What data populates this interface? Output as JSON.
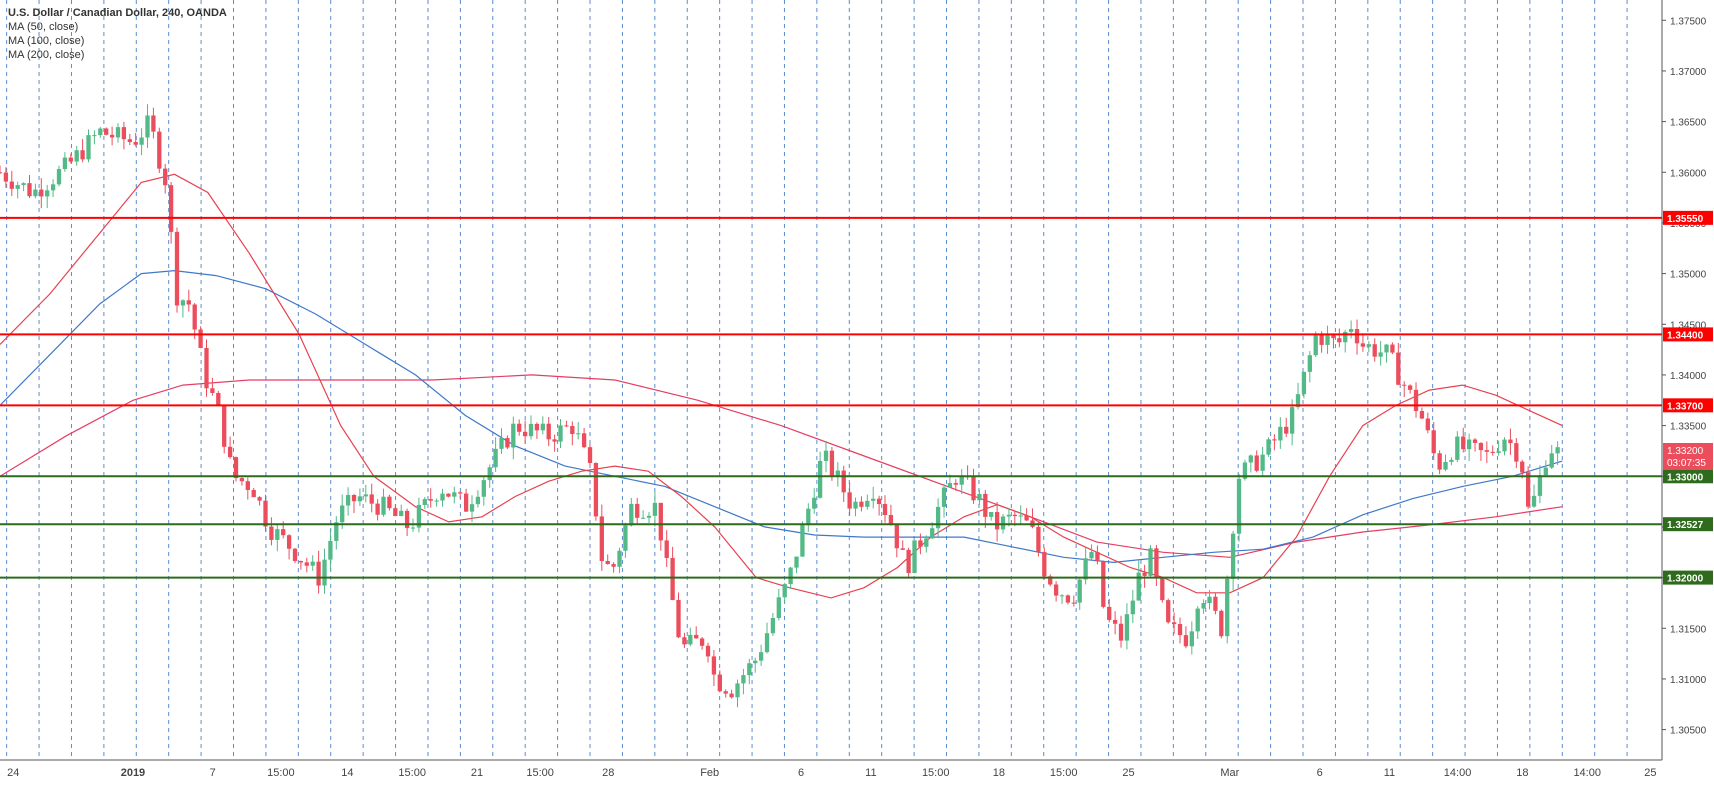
{
  "legend": {
    "title": "U.S. Dollar / Canadian Dollar, 240, OANDA",
    "ma50": "MA (50, close)",
    "ma100": "MA (100, close)",
    "ma200": "MA (200, close)"
  },
  "colors": {
    "up": "#53b987",
    "down": "#eb4d5c",
    "ma50": "#e8414e",
    "ma100": "#3f78c9",
    "ma200": "#e53e63",
    "resistance": "#ff0000",
    "support": "#2e6b1c",
    "vgrid": "#3f78c9"
  },
  "chart_data": {
    "type": "candlestick",
    "title": "U.S. Dollar / Canadian Dollar, 240, OANDA",
    "ylim": [
      1.302,
      1.377
    ],
    "xlim": [
      0,
      100
    ],
    "y_ticks": [
      "1.30500",
      "1.31000",
      "1.31500",
      "1.32000",
      "1.32500",
      "1.33000",
      "1.33500",
      "1.34000",
      "1.34500",
      "1.35000",
      "1.35500",
      "1.36000",
      "1.36500",
      "1.37000",
      "1.37500"
    ],
    "x_ticks": [
      {
        "label": "24",
        "x": 0.8
      },
      {
        "label": "2019",
        "x": 8.0,
        "bold": true
      },
      {
        "label": "7",
        "x": 12.8
      },
      {
        "label": "15:00",
        "x": 16.9
      },
      {
        "label": "14",
        "x": 20.9
      },
      {
        "label": "15:00",
        "x": 24.8
      },
      {
        "label": "21",
        "x": 28.7
      },
      {
        "label": "15:00",
        "x": 32.5
      },
      {
        "label": "28",
        "x": 36.6
      },
      {
        "label": "Feb",
        "x": 42.7
      },
      {
        "label": "6",
        "x": 48.2
      },
      {
        "label": "11",
        "x": 52.4
      },
      {
        "label": "15:00",
        "x": 56.3
      },
      {
        "label": "18",
        "x": 60.1
      },
      {
        "label": "15:00",
        "x": 64.0
      },
      {
        "label": "25",
        "x": 67.9
      },
      {
        "label": "Mar",
        "x": 74.0
      },
      {
        "label": "6",
        "x": 79.4
      },
      {
        "label": "11",
        "x": 83.6
      },
      {
        "label": "14:00",
        "x": 87.7
      },
      {
        "label": "18",
        "x": 91.6
      },
      {
        "label": "14:00",
        "x": 95.5
      },
      {
        "label": "25",
        "x": 99.3
      }
    ],
    "horizontal_levels": [
      {
        "value": 1.3555,
        "label": "1.35550",
        "kind": "resistance"
      },
      {
        "value": 1.344,
        "label": "1.34400",
        "kind": "resistance"
      },
      {
        "value": 1.337,
        "label": "1.33700",
        "kind": "resistance"
      },
      {
        "value": 1.33,
        "label": "1.33000",
        "kind": "support"
      },
      {
        "value": 1.32527,
        "label": "1.32527",
        "kind": "support"
      },
      {
        "value": 1.32,
        "label": "1.32000",
        "kind": "support"
      }
    ],
    "price_label": {
      "value": 1.332,
      "label": "1.33200",
      "countdown": "03:07:35"
    },
    "close_path": [
      [
        0,
        1.36
      ],
      [
        2,
        1.358
      ],
      [
        4,
        1.3605
      ],
      [
        6,
        1.364
      ],
      [
        8,
        1.363
      ],
      [
        9,
        1.3648
      ],
      [
        10,
        1.359
      ],
      [
        10.6,
        1.348
      ],
      [
        11.4,
        1.347
      ],
      [
        12.3,
        1.34
      ],
      [
        13.2,
        1.336
      ],
      [
        14,
        1.33
      ],
      [
        15.2,
        1.329
      ],
      [
        16.2,
        1.325
      ],
      [
        17.5,
        1.323
      ],
      [
        19.2,
        1.32
      ],
      [
        20.3,
        1.326
      ],
      [
        21.5,
        1.328
      ],
      [
        23,
        1.327
      ],
      [
        24.6,
        1.325
      ],
      [
        26.5,
        1.329
      ],
      [
        28,
        1.327
      ],
      [
        29.5,
        1.331
      ],
      [
        31,
        1.335
      ],
      [
        33,
        1.334
      ],
      [
        34.5,
        1.335
      ],
      [
        35.6,
        1.33
      ],
      [
        36.2,
        1.322
      ],
      [
        36.8,
        1.3205
      ],
      [
        38,
        1.327
      ],
      [
        39.5,
        1.327
      ],
      [
        40.2,
        1.32
      ],
      [
        41,
        1.313
      ],
      [
        42.5,
        1.314
      ],
      [
        43,
        1.31
      ],
      [
        44,
        1.309
      ],
      [
        45.5,
        1.312
      ],
      [
        46.5,
        1.316
      ],
      [
        47.5,
        1.32
      ],
      [
        48.5,
        1.326
      ],
      [
        49.5,
        1.332
      ],
      [
        50.3,
        1.33
      ],
      [
        51.3,
        1.327
      ],
      [
        52.5,
        1.329
      ],
      [
        53.5,
        1.326
      ],
      [
        54.5,
        1.321
      ],
      [
        55.5,
        1.324
      ],
      [
        57.5,
        1.33
      ],
      [
        58.8,
        1.328
      ],
      [
        59.8,
        1.325
      ],
      [
        61,
        1.326
      ],
      [
        62,
        1.325
      ],
      [
        62.8,
        1.321
      ],
      [
        63.5,
        1.319
      ],
      [
        64.5,
        1.318
      ],
      [
        65.8,
        1.323
      ],
      [
        66.5,
        1.316
      ],
      [
        67.5,
        1.314
      ],
      [
        68.5,
        1.32
      ],
      [
        69.2,
        1.322
      ],
      [
        70.2,
        1.315
      ],
      [
        71.5,
        1.314
      ],
      [
        72.2,
        1.319
      ],
      [
        73.5,
        1.315
      ],
      [
        74.5,
        1.33
      ],
      [
        76,
        1.332
      ],
      [
        77.8,
        1.336
      ],
      [
        78.5,
        1.34
      ],
      [
        79.2,
        1.344
      ],
      [
        80.5,
        1.343
      ],
      [
        81.3,
        1.345
      ],
      [
        82,
        1.343
      ],
      [
        83.5,
        1.342
      ],
      [
        84.5,
        1.339
      ],
      [
        85.5,
        1.336
      ],
      [
        86.5,
        1.331
      ],
      [
        87.5,
        1.333
      ],
      [
        89.5,
        1.332
      ],
      [
        90.5,
        1.334
      ],
      [
        91.5,
        1.332
      ],
      [
        92,
        1.326
      ],
      [
        93.2,
        1.333
      ],
      [
        94,
        1.332
      ]
    ],
    "ma50": [
      [
        0,
        1.343
      ],
      [
        3,
        1.348
      ],
      [
        6,
        1.354
      ],
      [
        8.5,
        1.359
      ],
      [
        10.5,
        1.3598
      ],
      [
        12.5,
        1.358
      ],
      [
        15,
        1.352
      ],
      [
        18,
        1.344
      ],
      [
        20.5,
        1.335
      ],
      [
        22.5,
        1.33
      ],
      [
        25,
        1.327
      ],
      [
        27,
        1.3255
      ],
      [
        29,
        1.326
      ],
      [
        31,
        1.328
      ],
      [
        33,
        1.3295
      ],
      [
        35,
        1.3305
      ],
      [
        37,
        1.331
      ],
      [
        39,
        1.3305
      ],
      [
        41,
        1.328
      ],
      [
        43,
        1.325
      ],
      [
        45.5,
        1.32
      ],
      [
        47.5,
        1.319
      ],
      [
        50,
        1.318
      ],
      [
        52,
        1.319
      ],
      [
        54,
        1.321
      ],
      [
        56,
        1.324
      ],
      [
        58,
        1.326
      ],
      [
        60,
        1.3272
      ],
      [
        62,
        1.326
      ],
      [
        64,
        1.324
      ],
      [
        66,
        1.3225
      ],
      [
        68,
        1.321
      ],
      [
        70,
        1.32
      ],
      [
        72,
        1.3185
      ],
      [
        74,
        1.3185
      ],
      [
        76,
        1.32
      ],
      [
        78,
        1.324
      ],
      [
        80,
        1.33
      ],
      [
        82,
        1.335
      ],
      [
        84,
        1.337
      ],
      [
        86,
        1.3385
      ],
      [
        88,
        1.339
      ],
      [
        90,
        1.338
      ],
      [
        92,
        1.3365
      ],
      [
        94,
        1.335
      ]
    ],
    "ma100": [
      [
        0,
        1.337
      ],
      [
        3,
        1.342
      ],
      [
        6,
        1.347
      ],
      [
        8.5,
        1.35
      ],
      [
        10.5,
        1.3503
      ],
      [
        13,
        1.3498
      ],
      [
        16,
        1.3485
      ],
      [
        19,
        1.346
      ],
      [
        22,
        1.343
      ],
      [
        25,
        1.34
      ],
      [
        28,
        1.336
      ],
      [
        31,
        1.333
      ],
      [
        34,
        1.331
      ],
      [
        37,
        1.33
      ],
      [
        40,
        1.329
      ],
      [
        43,
        1.327
      ],
      [
        46,
        1.325
      ],
      [
        49,
        1.3242
      ],
      [
        52,
        1.324
      ],
      [
        55,
        1.324
      ],
      [
        58,
        1.324
      ],
      [
        61,
        1.323
      ],
      [
        64,
        1.322
      ],
      [
        67,
        1.3215
      ],
      [
        70,
        1.322
      ],
      [
        73,
        1.3225
      ],
      [
        76,
        1.3228
      ],
      [
        79,
        1.324
      ],
      [
        82,
        1.3262
      ],
      [
        85,
        1.3278
      ],
      [
        88,
        1.329
      ],
      [
        91,
        1.33
      ],
      [
        93,
        1.331
      ],
      [
        94,
        1.3315
      ]
    ],
    "ma200": [
      [
        0,
        1.33
      ],
      [
        4,
        1.334
      ],
      [
        8,
        1.3375
      ],
      [
        11,
        1.339
      ],
      [
        15,
        1.3395
      ],
      [
        20,
        1.3395
      ],
      [
        26,
        1.3395
      ],
      [
        32,
        1.34
      ],
      [
        37,
        1.3395
      ],
      [
        42,
        1.3375
      ],
      [
        47,
        1.335
      ],
      [
        52,
        1.332
      ],
      [
        57,
        1.329
      ],
      [
        62,
        1.326
      ],
      [
        66,
        1.3235
      ],
      [
        70,
        1.3225
      ],
      [
        74,
        1.322
      ],
      [
        78,
        1.3235
      ],
      [
        82,
        1.3245
      ],
      [
        86,
        1.3252
      ],
      [
        90,
        1.326
      ],
      [
        94,
        1.327
      ]
    ]
  }
}
